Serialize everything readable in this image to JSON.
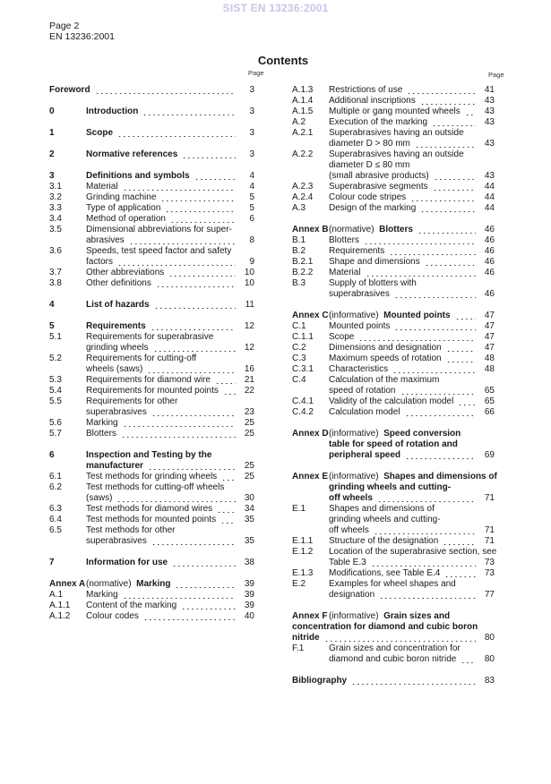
{
  "watermark": "SIST EN 13236:2001",
  "header": {
    "page": "Page 2",
    "doc": "EN 13236:2001"
  },
  "title": "Contents",
  "page_label": "Page",
  "left": [
    [
      {
        "num": "",
        "title": [
          "Foreword"
        ],
        "page": "3",
        "bold": true,
        "full": true
      }
    ],
    [
      {
        "num": "0",
        "title": [
          "Introduction"
        ],
        "page": "3",
        "bold": true
      }
    ],
    [
      {
        "num": "1",
        "title": [
          "Scope"
        ],
        "page": "3",
        "bold": true
      }
    ],
    [
      {
        "num": "2",
        "title": [
          "Normative references"
        ],
        "page": "3",
        "bold": true
      }
    ],
    [
      {
        "num": "3",
        "title": [
          "Definitions and symbols"
        ],
        "page": "4",
        "bold": true
      },
      {
        "num": "3.1",
        "title": [
          "Material"
        ],
        "page": "4"
      },
      {
        "num": "3.2",
        "title": [
          "Grinding machine"
        ],
        "page": "5"
      },
      {
        "num": "3.3",
        "title": [
          "Type of application"
        ],
        "page": "5"
      },
      {
        "num": "3.4",
        "title": [
          "Method of operation"
        ],
        "page": "6"
      },
      {
        "num": "3.5",
        "title": [
          "Dimensional abbreviations for super-",
          "abrasives"
        ],
        "page": "8"
      },
      {
        "num": "3.6",
        "title": [
          "Speeds, test speed factor and safety",
          "factors"
        ],
        "page": "9"
      },
      {
        "num": "3.7",
        "title": [
          "Other abbreviations"
        ],
        "page": "10"
      },
      {
        "num": "3.8",
        "title": [
          "Other definitions"
        ],
        "page": "10"
      }
    ],
    [
      {
        "num": "4",
        "title": [
          "List of hazards"
        ],
        "page": "11",
        "bold": true
      }
    ],
    [
      {
        "num": "5",
        "title": [
          "Requirements"
        ],
        "page": "12",
        "bold": true
      },
      {
        "num": "5.1",
        "title": [
          "Requirements for superabrasive",
          "grinding wheels"
        ],
        "page": "12"
      },
      {
        "num": "5.2",
        "title": [
          "Requirements for cutting-off",
          "wheels (saws)"
        ],
        "page": "16"
      },
      {
        "num": "5.3",
        "title": [
          "Requirements for diamond wire"
        ],
        "page": "21"
      },
      {
        "num": "5.4",
        "title": [
          "Requirements for mounted points"
        ],
        "page": "22"
      },
      {
        "num": "5.5",
        "title": [
          "Requirements for other",
          "superabrasives"
        ],
        "page": "23"
      },
      {
        "num": "5.6",
        "title": [
          "Marking"
        ],
        "page": "25"
      },
      {
        "num": "5.7",
        "title": [
          "Blotters"
        ],
        "page": "25"
      }
    ],
    [
      {
        "num": "6",
        "title": [
          "Inspection and Testing by the",
          "manufacturer"
        ],
        "page": "25",
        "bold": true
      },
      {
        "num": "6.1",
        "title": [
          "Test methods for grinding wheels"
        ],
        "page": "25"
      },
      {
        "num": "6.2",
        "title": [
          "Test methods for cutting-off wheels",
          "(saws)"
        ],
        "page": "30"
      },
      {
        "num": "6.3",
        "title": [
          "Test methods for diamond wires"
        ],
        "page": "34"
      },
      {
        "num": "6.4",
        "title": [
          "Test methods for mounted points"
        ],
        "page": "35"
      },
      {
        "num": "6.5",
        "title": [
          "Test methods for other",
          "superabrasives"
        ],
        "page": "35"
      }
    ],
    [
      {
        "num": "7",
        "title": [
          "Information for use"
        ],
        "page": "38",
        "bold": true
      }
    ],
    [
      {
        "num": "Annex A",
        "annex_type": "(normative)",
        "title": [
          "Marking"
        ],
        "page": "39",
        "bold": true
      },
      {
        "num": "A.1",
        "title": [
          "Marking"
        ],
        "page": "39"
      },
      {
        "num": "A.1.1",
        "title": [
          "Content of the marking"
        ],
        "page": "39"
      },
      {
        "num": "A.1.2",
        "title": [
          "Colour codes"
        ],
        "page": "40"
      }
    ]
  ],
  "right": [
    [
      {
        "num": "A.1.3",
        "title": [
          "Restrictions of use"
        ],
        "page": "41"
      },
      {
        "num": "A.1.4",
        "title": [
          "Additional inscriptions"
        ],
        "page": "43"
      },
      {
        "num": "A.1.5",
        "title": [
          "Multiple or gang mounted wheels"
        ],
        "page": "43"
      },
      {
        "num": "A.2",
        "title": [
          "Execution of the marking"
        ],
        "page": "43"
      },
      {
        "num": "A.2.1",
        "title": [
          "Superabrasives having an outside",
          "diameter D > 80 mm"
        ],
        "page": "43"
      },
      {
        "num": "A.2.2",
        "title": [
          "Superabrasives having an outside",
          "diameter D ≤ 80 mm",
          "(small abrasive products)"
        ],
        "page": "43"
      },
      {
        "num": "A.2.3",
        "title": [
          "Superabrasive segments"
        ],
        "page": "44"
      },
      {
        "num": "A.2.4",
        "title": [
          "Colour code stripes"
        ],
        "page": "44"
      },
      {
        "num": "A.3",
        "title": [
          "Design of the marking"
        ],
        "page": "44"
      }
    ],
    [
      {
        "num": "Annex B",
        "annex_type": "(normative)",
        "title": [
          "Blotters"
        ],
        "page": "46",
        "bold": true
      },
      {
        "num": "B.1",
        "title": [
          "Blotters"
        ],
        "page": "46"
      },
      {
        "num": "B.2",
        "title": [
          "Requirements"
        ],
        "page": "46"
      },
      {
        "num": "B.2.1",
        "title": [
          "Shape and dimensions"
        ],
        "page": "46"
      },
      {
        "num": "B.2.2",
        "title": [
          "Material"
        ],
        "page": "46"
      },
      {
        "num": "B.3",
        "title": [
          "Supply of blotters with",
          "superabrasives"
        ],
        "page": "46"
      }
    ],
    [
      {
        "num": "Annex C",
        "annex_type": "(informative)",
        "title": [
          "Mounted points"
        ],
        "page": "47",
        "bold": true
      },
      {
        "num": "C.1",
        "title": [
          "Mounted points"
        ],
        "page": "47"
      },
      {
        "num": "C.1.1",
        "title": [
          "Scope"
        ],
        "page": "47"
      },
      {
        "num": "C.2",
        "title": [
          "Dimensions and designation"
        ],
        "page": "47"
      },
      {
        "num": "C.3",
        "title": [
          "Maximum speeds of rotation"
        ],
        "page": "48"
      },
      {
        "num": "C.3.1",
        "title": [
          "Characteristics"
        ],
        "page": "48"
      },
      {
        "num": "C.4",
        "title": [
          "Calculation of the maximum",
          "speed of rotation"
        ],
        "page": "65"
      },
      {
        "num": "C.4.1",
        "title": [
          "Validity of the calculation model"
        ],
        "page": "65"
      },
      {
        "num": "C.4.2",
        "title": [
          "Calculation model"
        ],
        "page": "66"
      }
    ],
    [
      {
        "num": "Annex D",
        "annex_type": "(informative)",
        "title": [
          "Speed conversion",
          "table for speed of rotation and",
          "peripheral speed"
        ],
        "page": "69",
        "bold": true
      }
    ],
    [
      {
        "num": "Annex E",
        "annex_type": "(informative)",
        "title": [
          "Shapes and dimensions of",
          "grinding wheels and cutting-",
          "off wheels"
        ],
        "page": "71",
        "bold": true
      },
      {
        "num": "E.1",
        "title": [
          "Shapes and dimensions of",
          "grinding wheels and cutting-",
          "off wheels"
        ],
        "page": "71"
      },
      {
        "num": "E.1.1",
        "title": [
          "Structure of the designation"
        ],
        "page": "71"
      },
      {
        "num": "E.1.2",
        "title": [
          "Location of the superabrasive section, see",
          "Table E.3"
        ],
        "page": "73"
      },
      {
        "num": "E.1.3",
        "title": [
          "Modifications, see Table E.4"
        ],
        "page": "73"
      },
      {
        "num": "E.2",
        "title": [
          "Examples for wheel shapes and",
          "designation"
        ],
        "page": "77"
      }
    ],
    [
      {
        "num": "Annex F",
        "annex_type": "(informative)",
        "title": [
          "Grain sizes and",
          "concentration for diamond and cubic boron",
          "nitride"
        ],
        "page": "80",
        "bold": true,
        "full_continuation": true
      },
      {
        "num": "F.1",
        "title": [
          "Grain sizes and concentration for",
          "diamond and cubic boron nitride"
        ],
        "page": "80"
      }
    ],
    [
      {
        "num": "",
        "title": [
          "Bibliography"
        ],
        "page": "83",
        "bold": true,
        "full": true
      }
    ]
  ]
}
